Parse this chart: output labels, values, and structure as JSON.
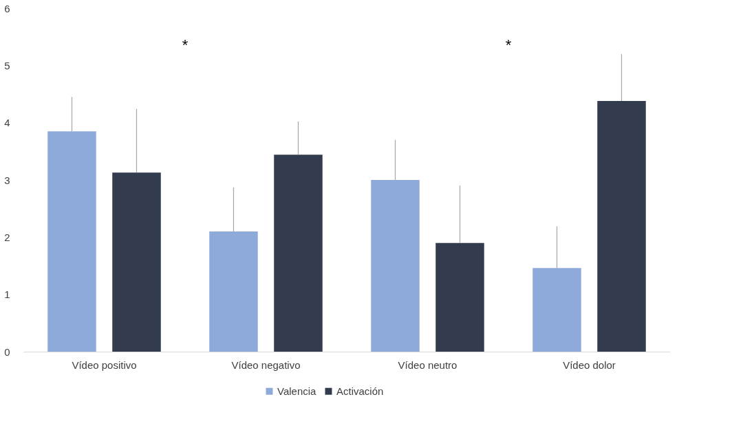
{
  "chart_data": {
    "type": "bar",
    "categories": [
      "Vídeo positivo",
      "Vídeo negativo",
      "Vídeo neutro",
      "Vídeo dolor"
    ],
    "series": [
      {
        "name": "Valencia",
        "color": "#8eaadb",
        "values": [
          3.85,
          2.1,
          3.0,
          1.46
        ],
        "errors": [
          [
            3.85,
            4.45
          ],
          [
            2.1,
            2.87
          ],
          [
            3.0,
            3.7
          ],
          [
            1.46,
            2.19
          ]
        ]
      },
      {
        "name": "Activación",
        "color": "#323c4e",
        "values": [
          3.13,
          3.44,
          1.9,
          4.38
        ],
        "errors": [
          [
            3.13,
            4.24
          ],
          [
            3.44,
            4.02
          ],
          [
            1.9,
            2.9
          ],
          [
            4.38,
            5.2
          ]
        ]
      }
    ],
    "ylim": [
      0,
      6
    ],
    "yticks": [
      0,
      1,
      2,
      3,
      4,
      5,
      6
    ],
    "grid": false,
    "legend": "bottom",
    "annotations": [
      "*",
      "*"
    ]
  }
}
